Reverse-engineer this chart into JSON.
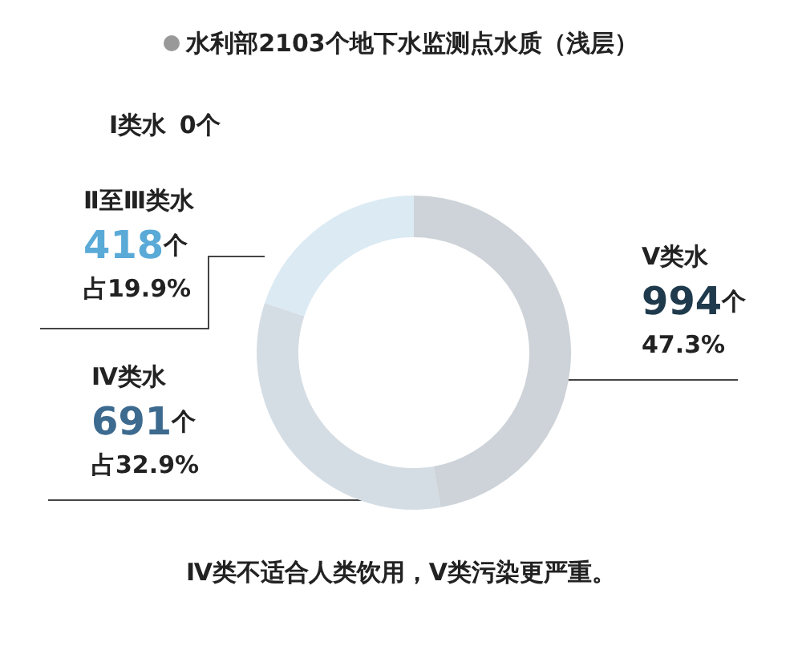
{
  "chart_data": {
    "type": "donut",
    "title": "水利部2103个地下水监测点水质（浅层）",
    "categories": [
      "Ⅰ类水",
      "Ⅱ至Ⅲ类水",
      "Ⅳ类水",
      "Ⅴ类水"
    ],
    "values": [
      0,
      418,
      691,
      994
    ],
    "colors": [
      "#e6eef3",
      "#dbeaf3",
      "#d5dde4",
      "#cdd3d8"
    ],
    "value_labels": [
      "0个",
      "418个占19.9%",
      "691个占32.9%",
      "994个47.3%"
    ],
    "annotations": [
      "Ⅳ类不适合人类饮用，Ⅴ类污染更严重。"
    ],
    "legend": false
  }
}
